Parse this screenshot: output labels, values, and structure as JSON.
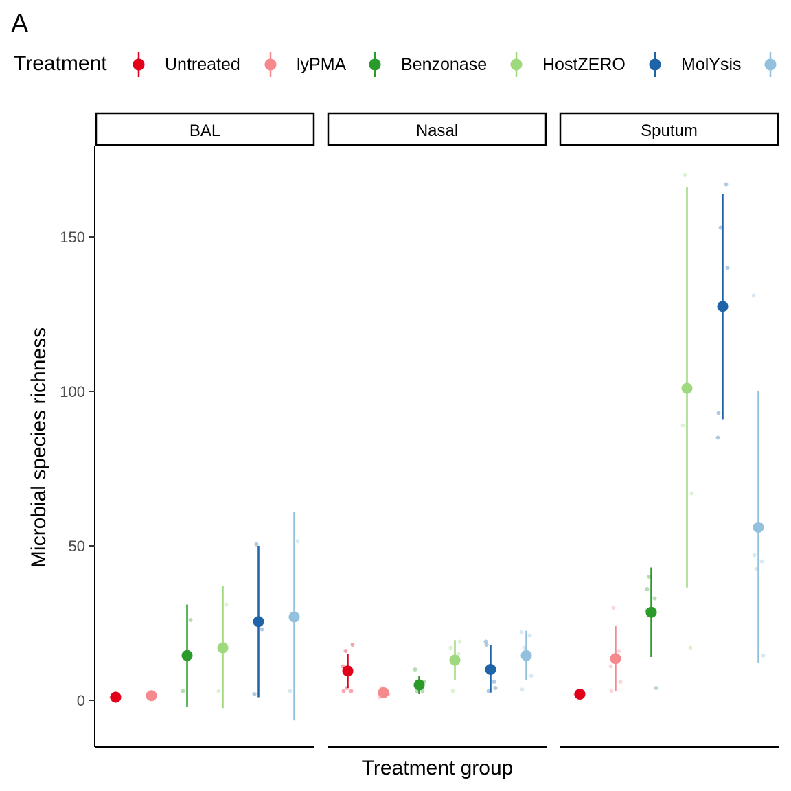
{
  "figure": {
    "panel_letter": "A"
  },
  "legend": {
    "title": "Treatment",
    "items": [
      {
        "label": "Untreated",
        "color": "#E3001B"
      },
      {
        "label": "lyPMA",
        "color": "#F58A8E"
      },
      {
        "label": "Benzonase",
        "color": "#2A9A2A"
      },
      {
        "label": "HostZERO",
        "color": "#9ED97E"
      },
      {
        "label": "MolYsis",
        "color": "#1F63A8"
      },
      {
        "label": "",
        "color": "#93C0DD"
      }
    ]
  },
  "chart_data": {
    "type": "scatter",
    "xlabel": "Treatment group",
    "ylabel": "Microbial species richness",
    "ylim": [
      -15,
      180
    ],
    "yticks": [
      0,
      50,
      100,
      150
    ],
    "facets": [
      "BAL",
      "Nasal",
      "Sputum"
    ],
    "grid": false,
    "legend_position": "top",
    "series": [
      {
        "name": "Untreated",
        "points": [
          {
            "facet": "BAL",
            "mean": 1,
            "lower": null,
            "upper": null,
            "samples": [
              1,
              1,
              1
            ]
          },
          {
            "facet": "Nasal",
            "mean": 9.5,
            "lower": 4,
            "upper": 15,
            "samples": [
              3,
              3,
              16,
              18,
              11,
              9,
              4
            ]
          },
          {
            "facet": "Sputum",
            "mean": 2,
            "lower": null,
            "upper": null,
            "samples": [
              2,
              2,
              2
            ]
          }
        ]
      },
      {
        "name": "lyPMA",
        "points": [
          {
            "facet": "BAL",
            "mean": 1.5,
            "lower": null,
            "upper": null,
            "samples": [
              1.5,
              1.5,
              1.5
            ]
          },
          {
            "facet": "Nasal",
            "mean": 2.5,
            "lower": null,
            "upper": null,
            "samples": [
              1,
              3,
              4,
              2
            ]
          },
          {
            "facet": "Sputum",
            "mean": 13.5,
            "lower": 3,
            "upper": 24,
            "samples": [
              3,
              16,
              30,
              6,
              11
            ]
          }
        ]
      },
      {
        "name": "Benzonase",
        "points": [
          {
            "facet": "BAL",
            "mean": 14.5,
            "lower": -2,
            "upper": 31,
            "samples": [
              3,
              26,
              14
            ]
          },
          {
            "facet": "Nasal",
            "mean": 5,
            "lower": 2,
            "upper": 8,
            "samples": [
              10,
              3,
              3,
              6
            ]
          },
          {
            "facet": "Sputum",
            "mean": 28.5,
            "lower": 14,
            "upper": 43,
            "samples": [
              36,
              33,
              40,
              4,
              29
            ]
          }
        ]
      },
      {
        "name": "HostZERO",
        "points": [
          {
            "facet": "BAL",
            "mean": 17,
            "lower": -2.5,
            "upper": 37,
            "samples": [
              3,
              31,
              17
            ]
          },
          {
            "facet": "Nasal",
            "mean": 13,
            "lower": 6.5,
            "upper": 19.5,
            "samples": [
              17,
              15,
              3,
              19
            ]
          },
          {
            "facet": "Sputum",
            "mean": 101,
            "lower": 36.5,
            "upper": 166,
            "samples": [
              89,
              17,
              170,
              67
            ]
          }
        ]
      },
      {
        "name": "MolYsis",
        "points": [
          {
            "facet": "BAL",
            "mean": 25.5,
            "lower": 1,
            "upper": 50,
            "samples": [
              2,
              23,
              50.5
            ]
          },
          {
            "facet": "Nasal",
            "mean": 10,
            "lower": 2.5,
            "upper": 18,
            "samples": [
              18,
              6,
              3,
              4,
              19
            ]
          },
          {
            "facet": "Sputum",
            "mean": 127.5,
            "lower": 91,
            "upper": 164,
            "samples": [
              93,
              167,
              153,
              140,
              85
            ]
          }
        ]
      },
      {
        "name": "",
        "points": [
          {
            "facet": "BAL",
            "mean": 27,
            "lower": -6.5,
            "upper": 61,
            "samples": [
              3,
              51.5
            ]
          },
          {
            "facet": "Nasal",
            "mean": 14.5,
            "lower": 6.5,
            "upper": 22.5,
            "samples": [
              3.5,
              21,
              17,
              8,
              22
            ]
          },
          {
            "facet": "Sputum",
            "mean": 56,
            "lower": 12,
            "upper": 100,
            "samples": [
              47,
              45,
              42.5,
              14.5,
              131
            ]
          }
        ]
      }
    ]
  }
}
